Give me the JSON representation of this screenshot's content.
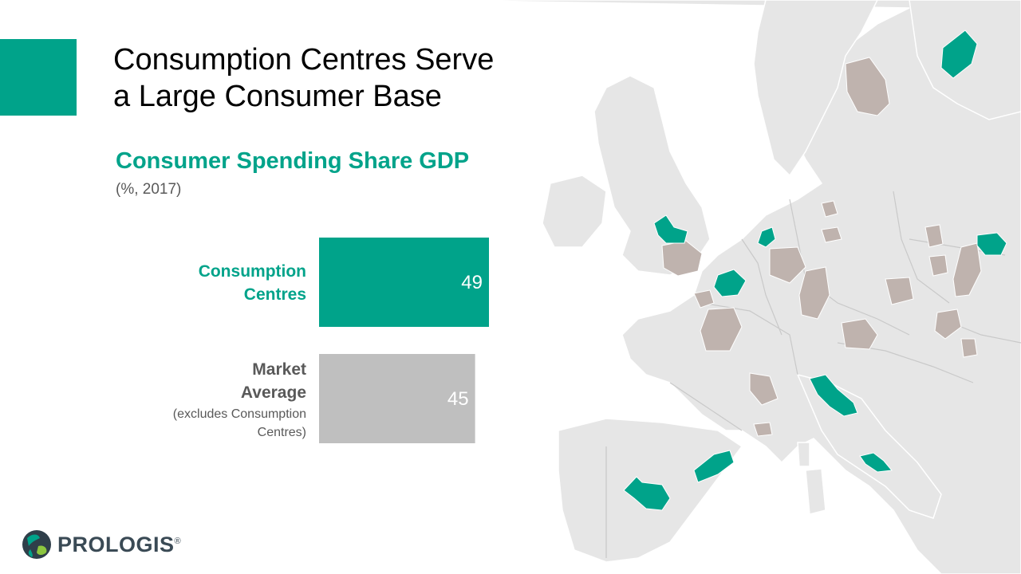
{
  "slide": {
    "title_line1": "Consumption Centres Serve",
    "title_line2": "a Large Consumer Base"
  },
  "chart_data": {
    "type": "bar",
    "orientation": "horizontal",
    "title": "Consumer Spending Share GDP",
    "subtitle": "(%, 2017)",
    "categories": [
      {
        "label_lines": [
          "Consumption",
          "Centres"
        ],
        "note_lines": [],
        "value": 49,
        "color": "#00A38A"
      },
      {
        "label_lines": [
          "Market",
          "Average"
        ],
        "note_lines": [
          "(excludes Consumption",
          "Centres)"
        ],
        "value": 45,
        "color": "#BFBFBF"
      }
    ],
    "values": [
      49,
      45
    ],
    "value_labels": [
      "49",
      "45"
    ],
    "axis_visible": false,
    "grid": false
  },
  "map": {
    "land_color": "#E6E6E6",
    "border_color": "#C9C9C9",
    "consumption_centre_color": "#00A38A",
    "market_region_color": "#BFB3AE"
  },
  "brand": {
    "logo_text_pro": "PRO",
    "logo_text_logis": "LOGIS",
    "registered": "®",
    "accent_color": "#00A38A"
  }
}
